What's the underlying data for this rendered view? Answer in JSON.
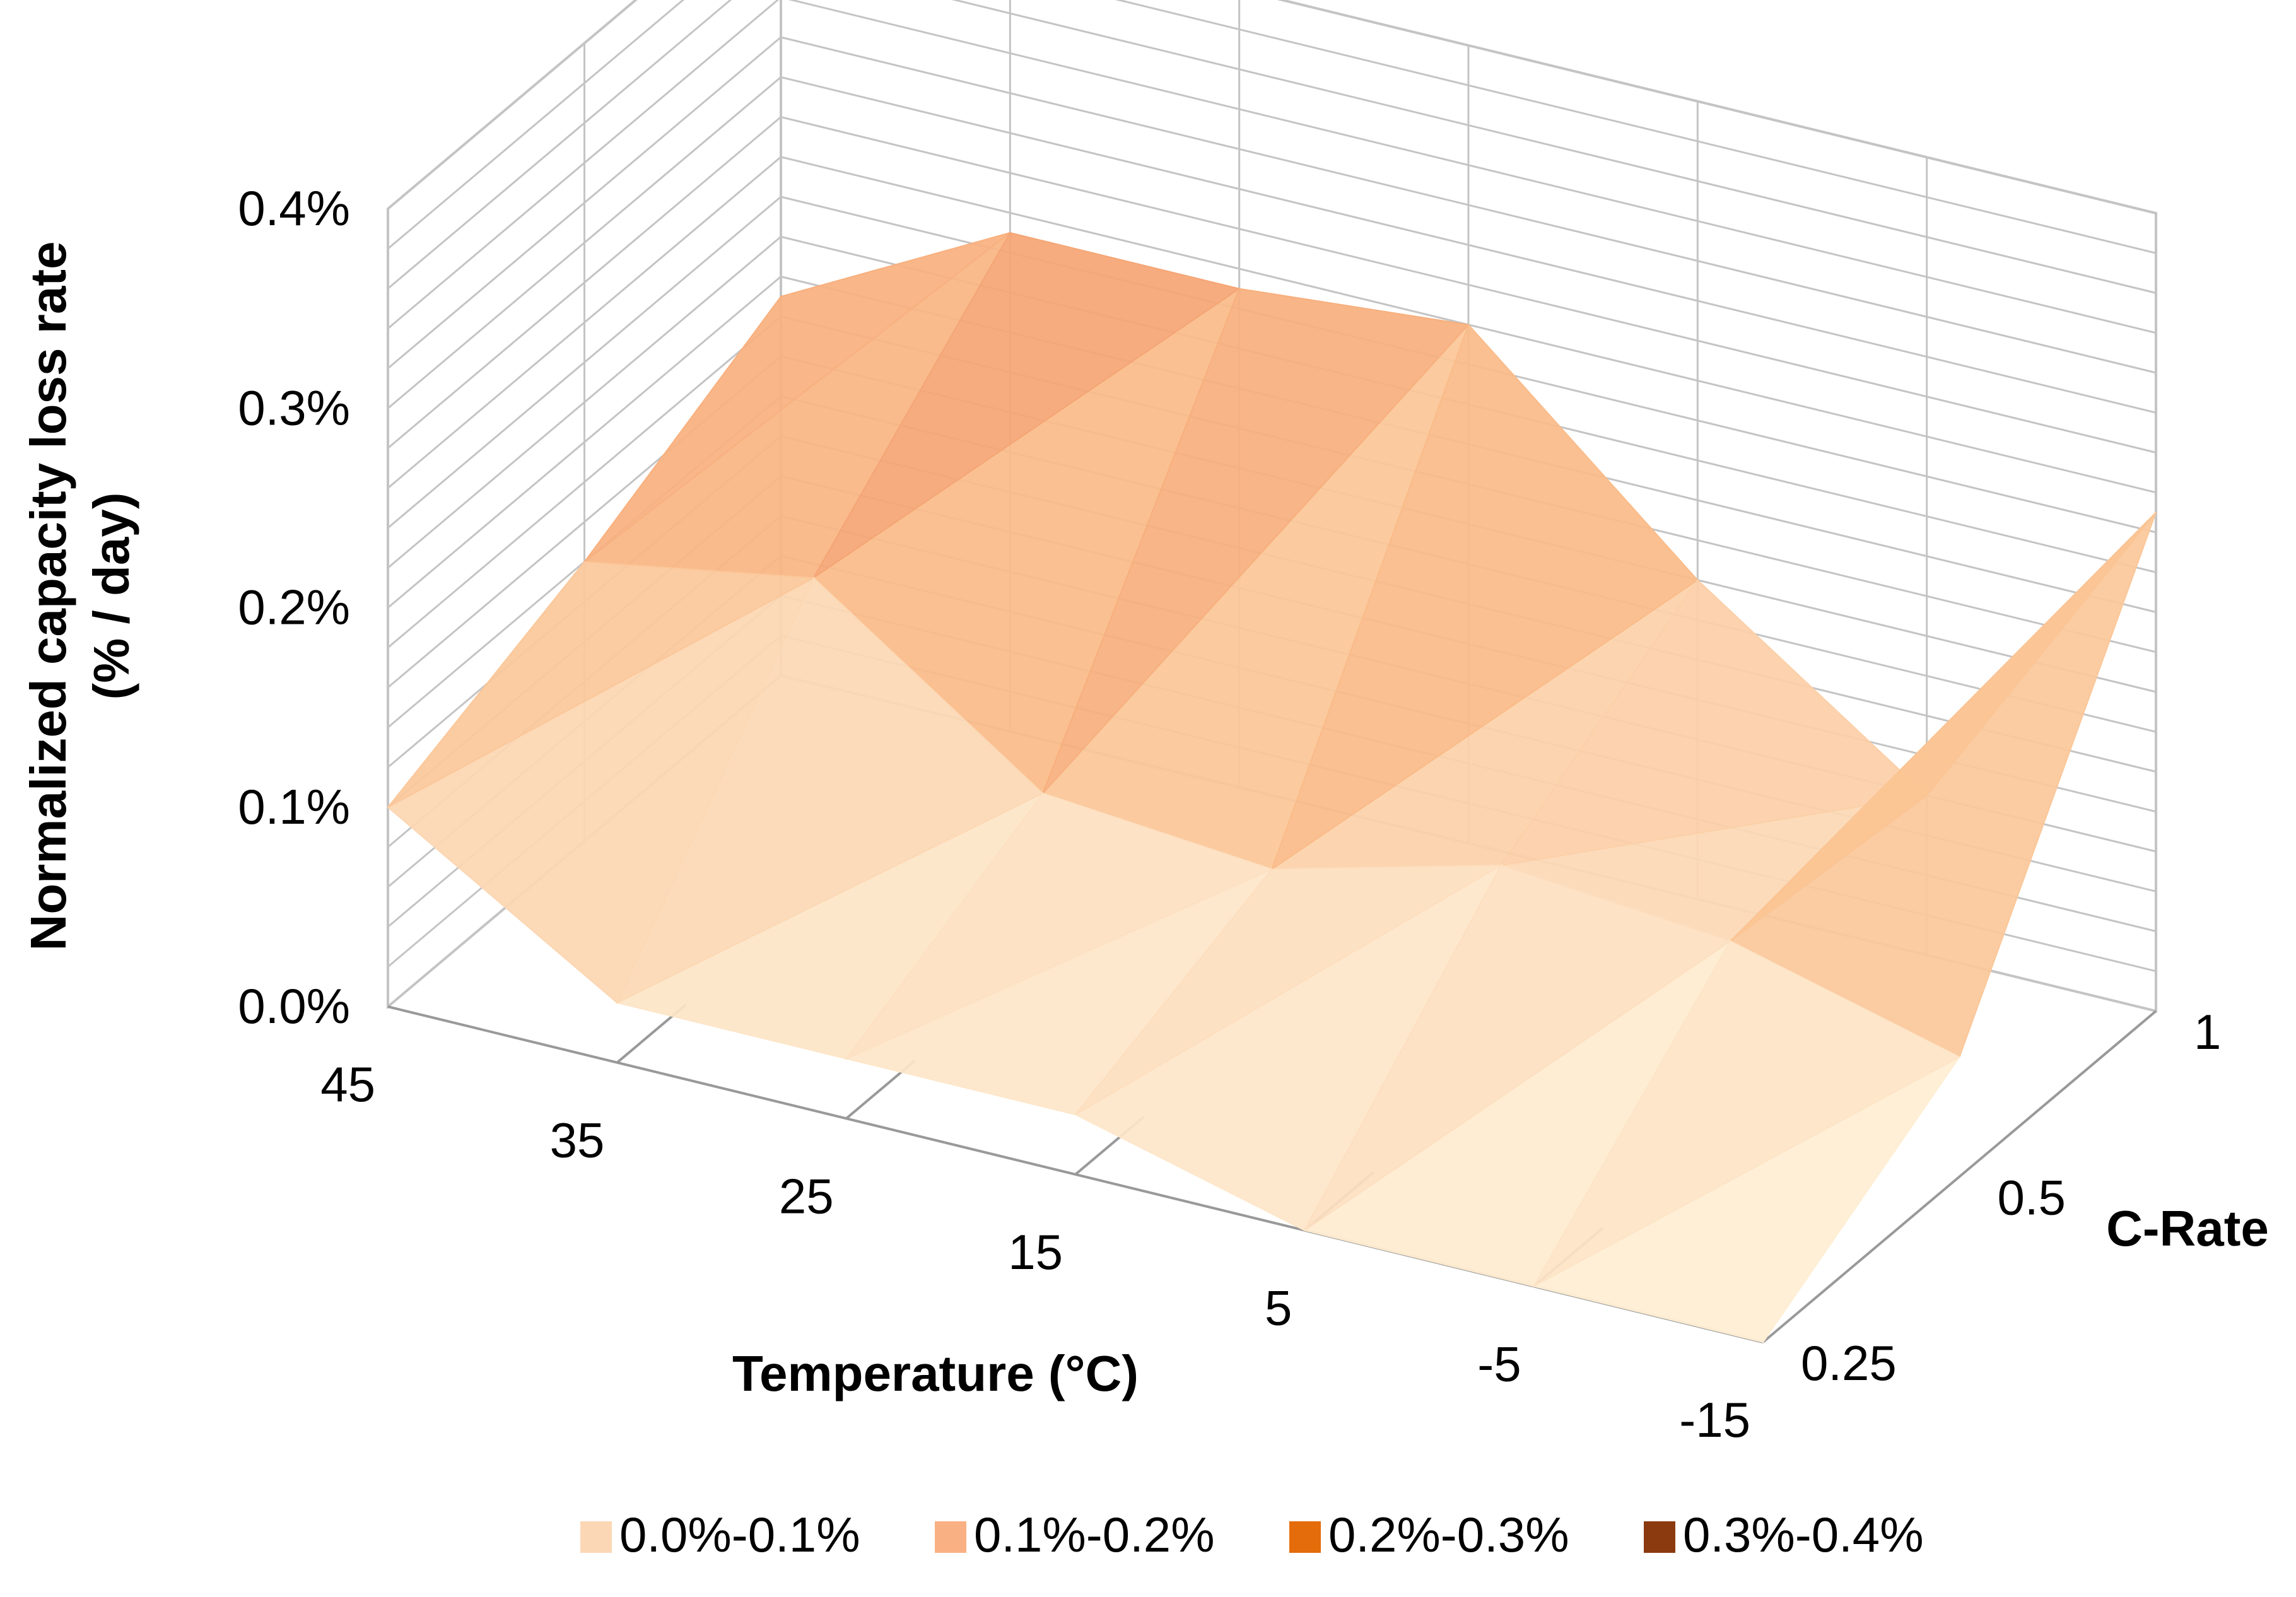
{
  "chart_data": {
    "type": "surface",
    "title": "",
    "zlabel_line1": "Normalized capacity loss rate",
    "zlabel_line2": "(% / day)",
    "xlabel": "Temperature (°C)",
    "ylabel": "C-Rate",
    "x_ticks": [
      "45",
      "35",
      "25",
      "15",
      "5",
      "-5",
      "-15"
    ],
    "y_ticks": [
      "0.25",
      "0.5",
      "1"
    ],
    "z_ticks": [
      "0.0%",
      "0.1%",
      "0.2%",
      "0.3%",
      "0.4%"
    ],
    "zlim": [
      0,
      0.4
    ],
    "grid": true,
    "legend_position": "bottom",
    "legend": [
      {
        "label": "0.0%-0.1%",
        "color": "#fcd7b5"
      },
      {
        "label": "0.1%-0.2%",
        "color": "#f9b184"
      },
      {
        "label": "0.2%-0.3%",
        "color": "#e46c0a"
      },
      {
        "label": "0.3%-0.4%",
        "color": "#8b3a0f"
      }
    ],
    "series": [
      {
        "name": "0.25",
        "values": [
          0.1,
          0.03,
          0.03,
          0.03,
          0.0,
          0.0,
          0.0
        ]
      },
      {
        "name": "0.5",
        "values": [
          0.14,
          0.16,
          0.08,
          0.07,
          0.1,
          0.09,
          0.06
        ]
      },
      {
        "name": "1",
        "values": [
          0.19,
          0.25,
          0.25,
          0.26,
          0.16,
          0.08,
          0.25
        ]
      }
    ]
  }
}
